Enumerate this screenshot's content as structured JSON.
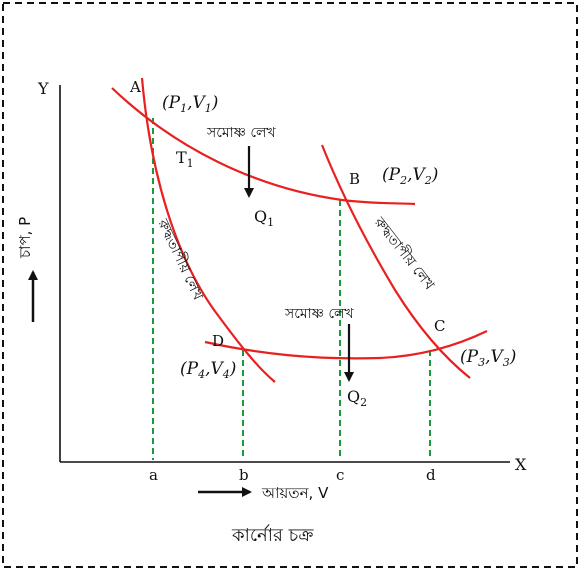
{
  "axes": {
    "y_letter": "Y",
    "x_letter": "X",
    "y_label": "চাপ, P",
    "x_label": "আয়তন, V"
  },
  "points": {
    "A": "A",
    "B": "B",
    "C": "C",
    "D": "D"
  },
  "coords": {
    "A": {
      "p": "P",
      "ps": "1",
      "v": "V",
      "vs": "1"
    },
    "B": {
      "p": "P",
      "ps": "2",
      "v": "V",
      "vs": "2"
    },
    "C": {
      "p": "P",
      "ps": "3",
      "v": "V",
      "vs": "3"
    },
    "D": {
      "p": "P",
      "ps": "4",
      "v": "V",
      "vs": "4"
    }
  },
  "ticks": [
    "a",
    "b",
    "c",
    "d"
  ],
  "labels": {
    "isothermal_top": "সমোষ্ণ লেখ",
    "isothermal_bottom": "সমোষ্ণ লেখ",
    "adiabatic_left": "রুদ্ধতাপীয় লেখ",
    "adiabatic_right": "রুদ্ধতাপীয় লেখ",
    "temp": "T",
    "temp_sub": "1",
    "q1": "Q",
    "q1_sub": "1",
    "q2": "Q",
    "q2_sub": "2"
  },
  "caption": "কার্নোর চক্র",
  "colors": {
    "curve": "#e8201f",
    "guide": "#1a9a3a",
    "ink": "#111111"
  }
}
